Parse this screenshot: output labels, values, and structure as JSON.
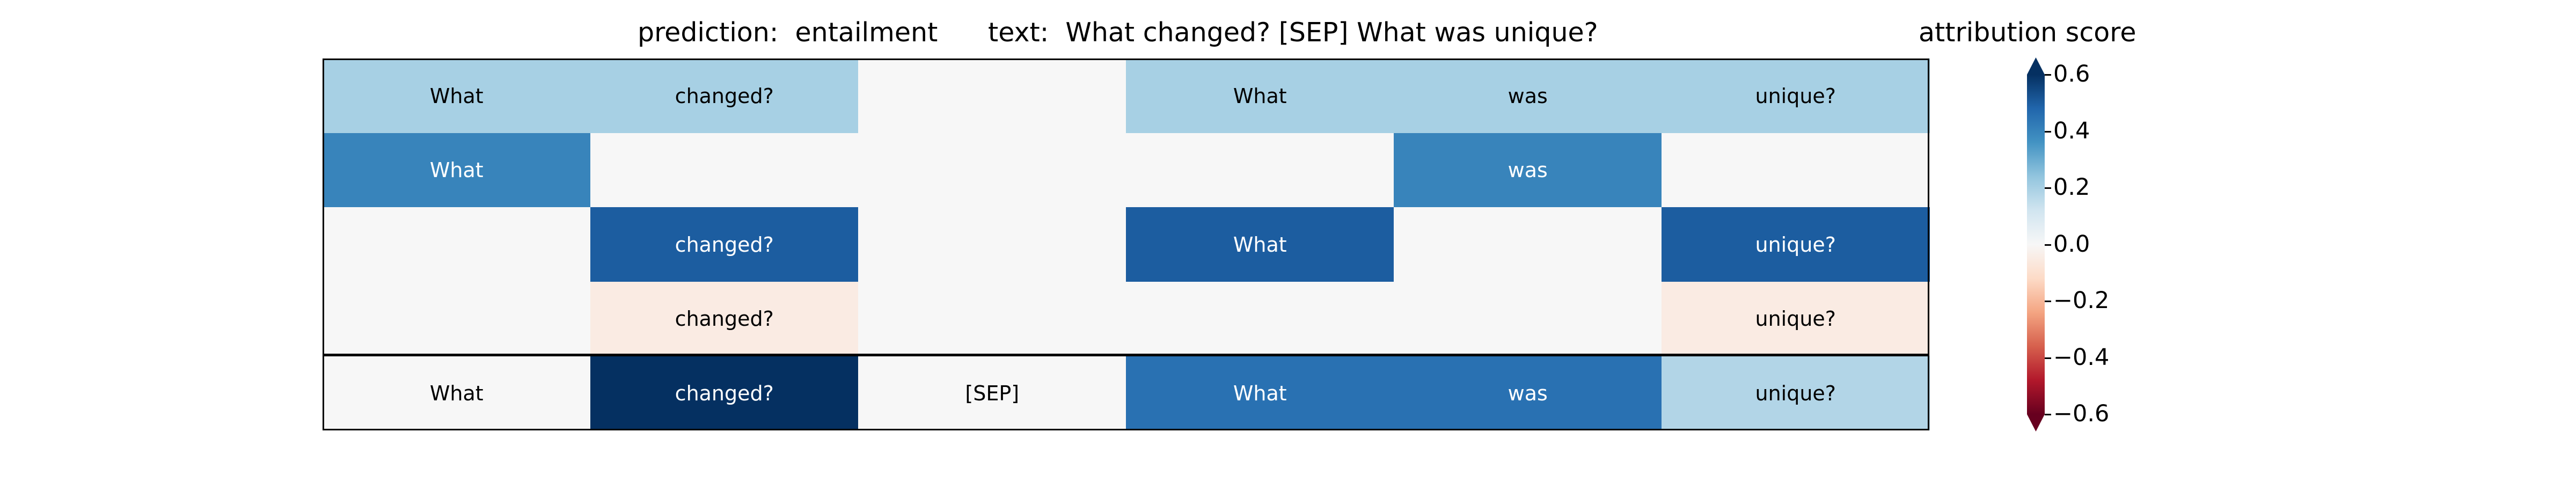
{
  "chart_data": {
    "type": "heatmap",
    "title_left": "prediction:  entailment",
    "title_right": "text:  What changed? [SEP] What was unique?",
    "colorbar_label": "attribution score",
    "colorbar_range": [
      -0.6,
      0.6
    ],
    "colorbar_ticks": [
      "0.6",
      "0.4",
      "0.2",
      "0.0",
      "−0.2",
      "−0.4",
      "−0.6"
    ],
    "colormap": "RdBu",
    "tokens": [
      "What",
      "changed?",
      "[SEP]",
      "What",
      "was",
      "unique?"
    ],
    "rows": [
      {
        "labels": [
          "What",
          "changed?",
          "",
          "What",
          "was",
          "unique?"
        ],
        "values": [
          0.2,
          0.2,
          0.0,
          0.2,
          0.2,
          0.2
        ]
      },
      {
        "labels": [
          "What",
          "",
          "",
          "",
          "was",
          ""
        ],
        "values": [
          0.4,
          0.0,
          0.0,
          0.0,
          0.4,
          0.0
        ]
      },
      {
        "labels": [
          "",
          "changed?",
          "",
          "What",
          "",
          "unique?"
        ],
        "values": [
          0.0,
          0.5,
          0.0,
          0.5,
          0.0,
          0.5
        ]
      },
      {
        "labels": [
          "",
          "changed?",
          "",
          "",
          "",
          "unique?"
        ],
        "values": [
          0.0,
          -0.05,
          0.0,
          0.0,
          0.0,
          -0.05
        ]
      },
      {
        "labels": [
          "What",
          "changed?",
          "[SEP]",
          "What",
          "was",
          "unique?"
        ],
        "values": [
          0.0,
          0.6,
          0.0,
          0.45,
          0.45,
          0.18
        ]
      }
    ]
  }
}
